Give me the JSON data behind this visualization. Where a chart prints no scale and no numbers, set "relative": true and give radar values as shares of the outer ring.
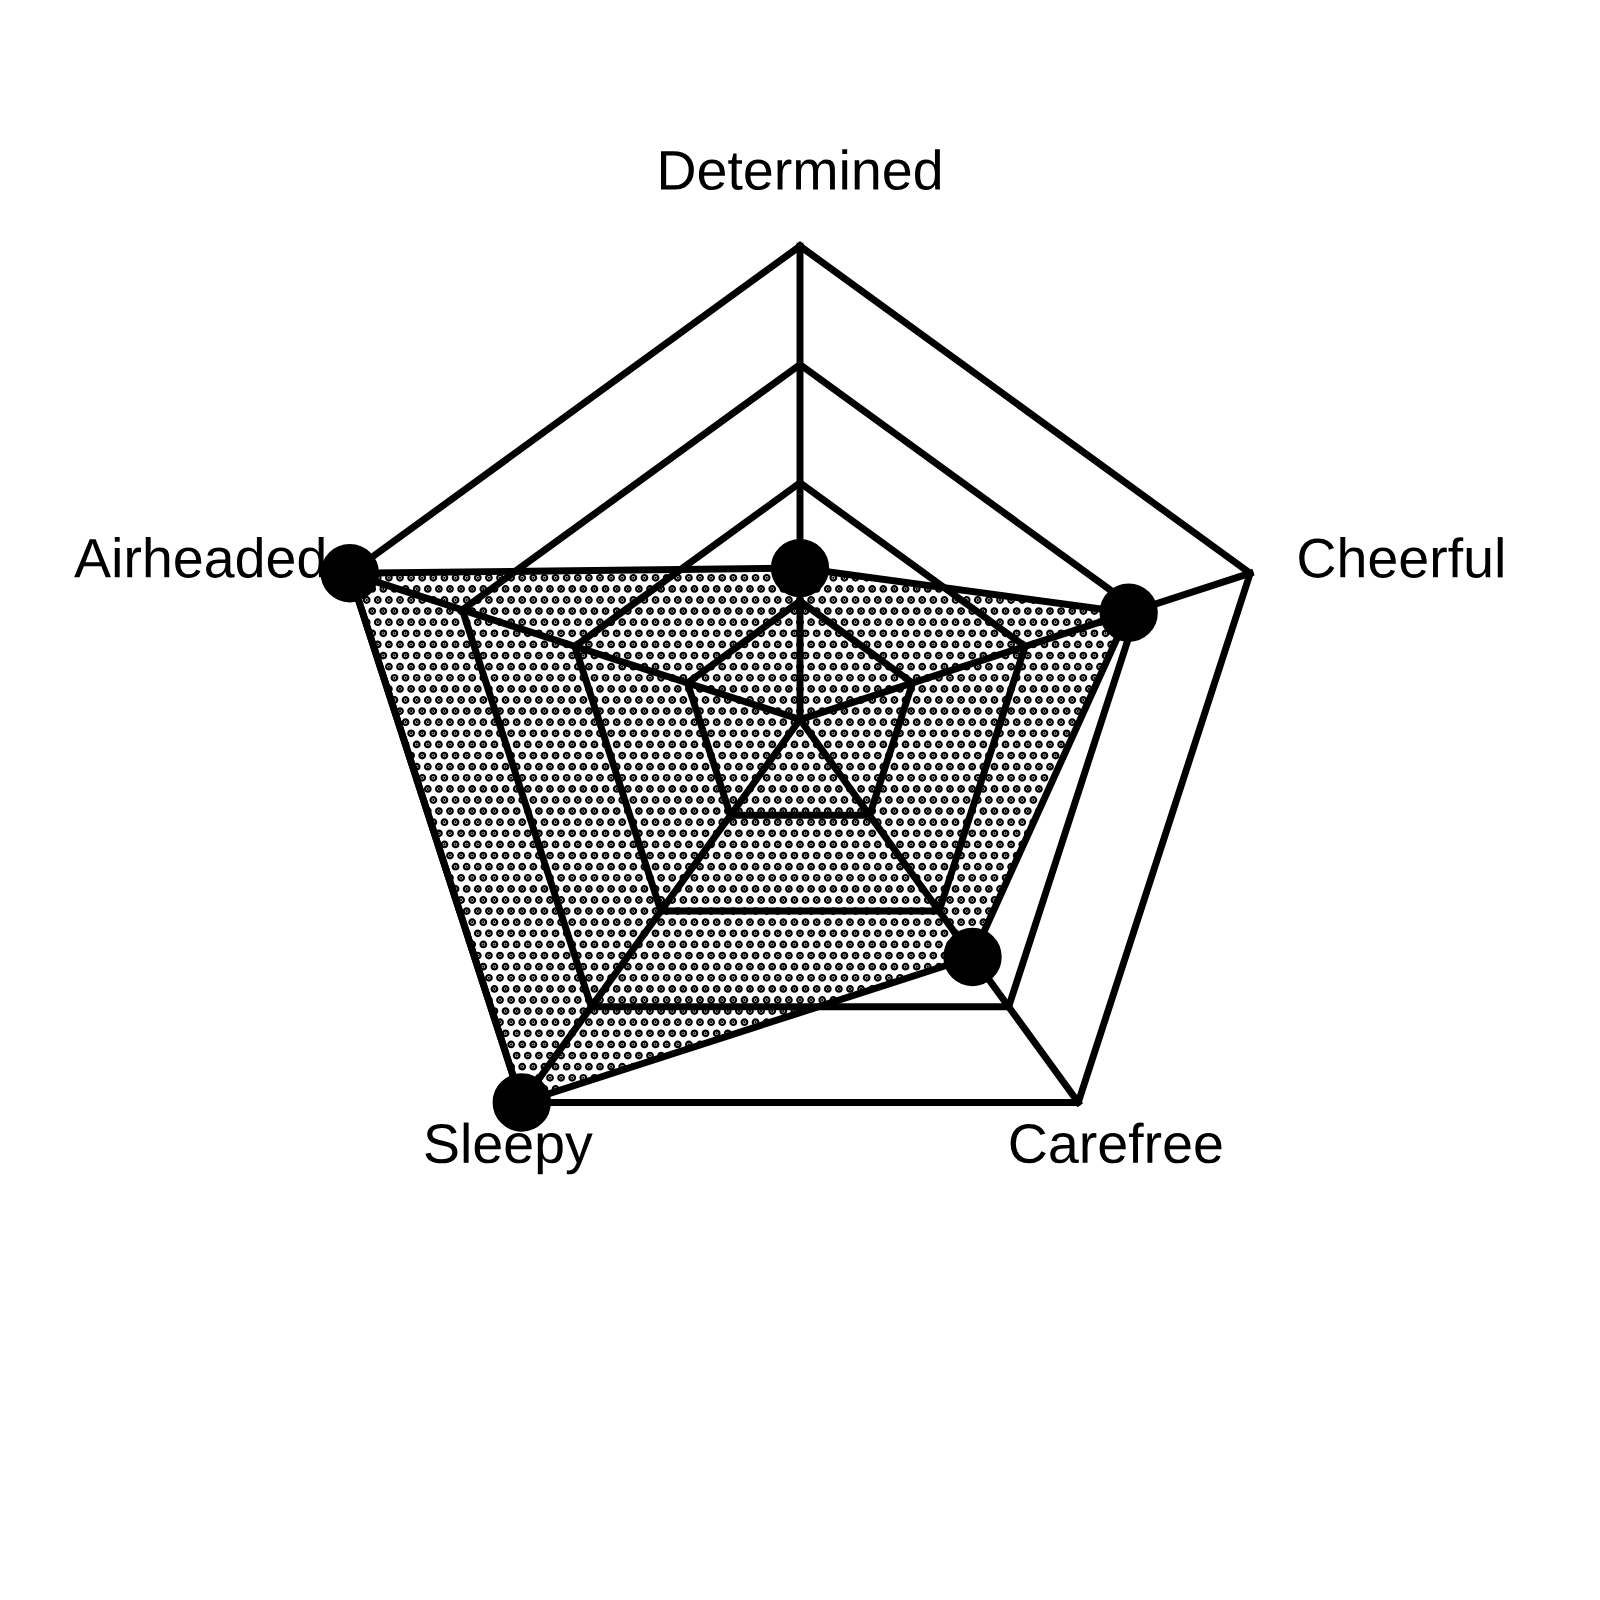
{
  "chart_data": {
    "type": "radar",
    "relative": true,
    "grid": true,
    "marker": "circle",
    "categories": [
      "Determined",
      "Cheerful",
      "Carefree",
      "Sleepy",
      "Airheaded"
    ],
    "series": [
      {
        "color": "#000000",
        "values": [
          0.32,
          0.73,
          0.62,
          1.0,
          1.0
        ]
      }
    ]
  }
}
